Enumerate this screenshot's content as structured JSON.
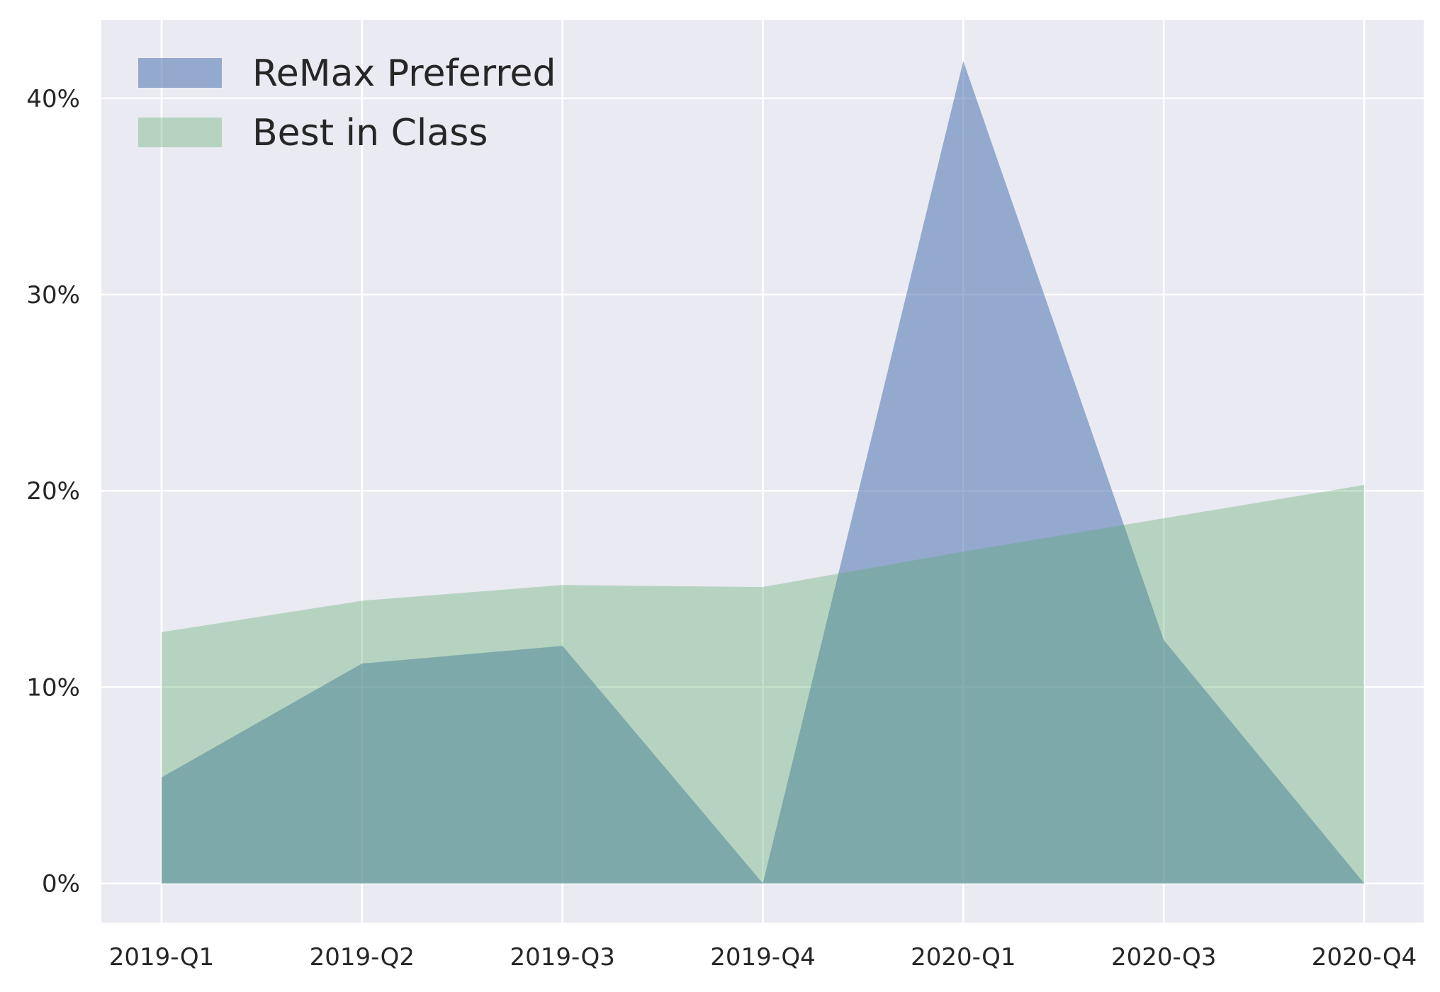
{
  "chart_data": {
    "type": "area",
    "title": "",
    "xlabel": "",
    "ylabel": "",
    "categories": [
      "2019-Q1",
      "2019-Q2",
      "2019-Q3",
      "2019-Q4",
      "2020-Q1",
      "2020-Q3",
      "2020-Q4"
    ],
    "series": [
      {
        "name": "ReMax Preferred",
        "color": "#4c72b0",
        "opacity": 0.55,
        "values": [
          5.4,
          11.2,
          12.1,
          0.0,
          41.9,
          12.4,
          0.0
        ]
      },
      {
        "name": "Best in Class",
        "color": "#55a868",
        "opacity": 0.35,
        "values": [
          12.8,
          14.4,
          15.2,
          15.1,
          16.9,
          18.6,
          20.3
        ]
      }
    ],
    "ylim": [
      -2.0,
      44.0
    ],
    "yticks": [
      0,
      10,
      20,
      30,
      40
    ],
    "ytick_format": "%",
    "grid": true,
    "background": "#eaeaf2",
    "legend_position": "top-left"
  }
}
